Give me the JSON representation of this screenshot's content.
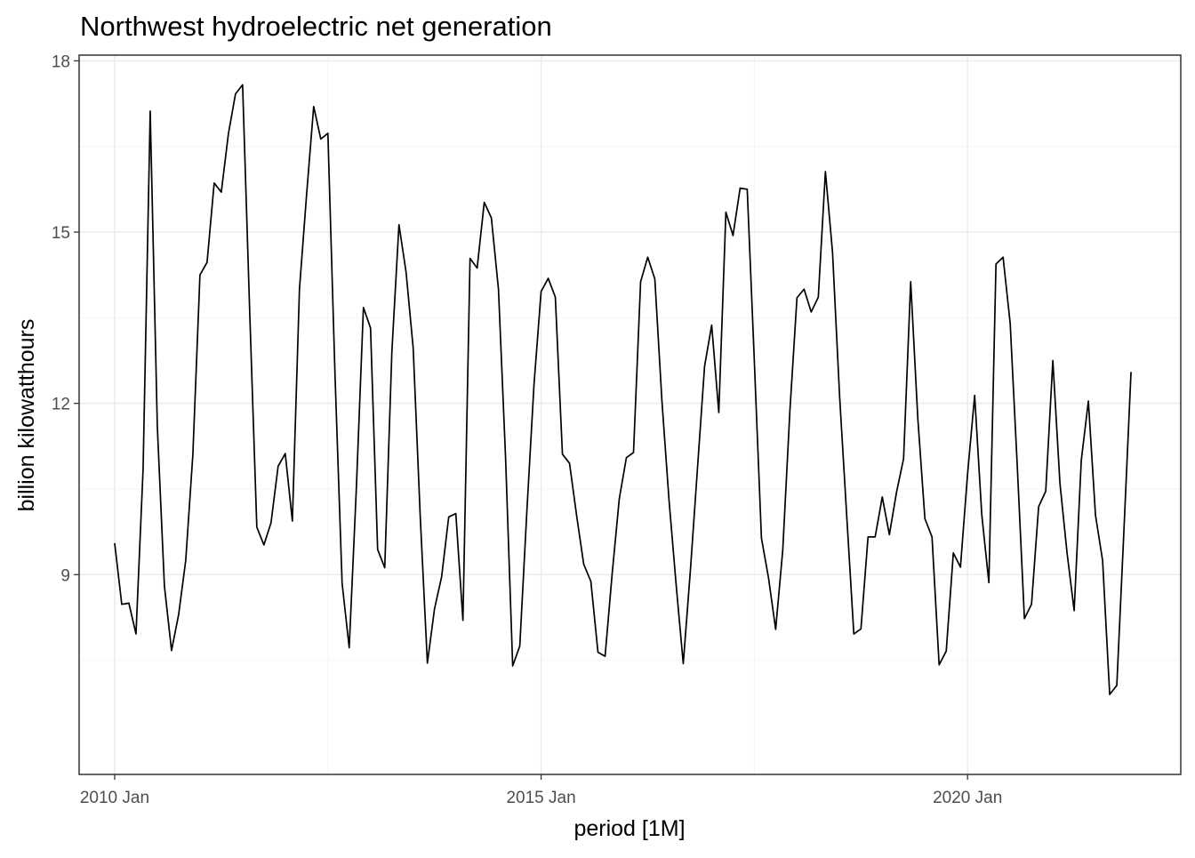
{
  "chart_data": {
    "type": "line",
    "title": "Northwest hydroelectric net generation",
    "xlabel": "period [1M]",
    "ylabel": "billion kilowatthours",
    "x_start": "2010 Jan",
    "x_frequency": "monthly",
    "xlim": [
      "2009 Aug",
      "2022 Jul"
    ],
    "ylim": [
      5.5,
      18.1
    ],
    "x_ticks": [
      "2010 Jan",
      "2015 Jan",
      "2020 Jan"
    ],
    "y_ticks": [
      9,
      12,
      15,
      18
    ],
    "grid": true,
    "colors": {
      "line": "#000000",
      "grid": "#ebebeb",
      "panel_border": "#333333"
    },
    "series": [
      {
        "values": [
          9.55,
          8.48,
          8.5,
          7.96,
          10.85,
          17.12,
          11.6,
          8.8,
          7.67,
          8.3,
          9.25,
          11.1,
          14.25,
          14.47,
          15.86,
          15.7,
          16.72,
          17.42,
          17.58,
          13.6,
          9.83,
          9.52,
          9.91,
          10.9,
          11.12,
          9.94,
          14.0,
          15.65,
          17.2,
          16.63,
          16.73,
          12.5,
          8.85,
          7.72,
          10.5,
          13.68,
          13.32,
          9.44,
          9.12,
          12.9,
          15.13,
          14.3,
          12.97,
          10.0,
          7.45,
          8.4,
          8.96,
          10.01,
          10.07,
          8.2,
          14.54,
          14.37,
          15.52,
          15.25,
          14.0,
          11.05,
          7.4,
          7.75,
          10.12,
          12.33,
          13.96,
          14.19,
          13.86,
          11.11,
          10.95,
          10.03,
          9.18,
          8.88,
          7.64,
          7.57,
          9.02,
          10.33,
          11.05,
          11.14,
          14.13,
          14.56,
          14.18,
          12.04,
          10.3,
          8.82,
          7.44,
          9.07,
          10.86,
          12.65,
          13.37,
          11.84,
          15.35,
          14.94,
          15.77,
          15.75,
          12.74,
          9.64,
          8.94,
          8.04,
          9.43,
          11.86,
          13.85,
          14.0,
          13.6,
          13.86,
          16.06,
          14.65,
          12.12,
          10.03,
          7.96,
          8.05,
          9.66,
          9.66,
          10.36,
          9.7,
          10.44,
          11.03,
          14.13,
          11.74,
          9.98,
          9.66,
          7.42,
          7.66,
          9.38,
          9.13,
          10.76,
          12.14,
          10.05,
          8.86,
          14.44,
          14.56,
          13.4,
          10.89,
          8.23,
          8.48,
          10.19,
          10.46,
          12.75,
          10.6,
          9.38,
          8.37,
          11.0,
          12.04,
          10.04,
          9.25,
          6.9,
          7.06,
          9.77,
          12.55
        ]
      }
    ]
  }
}
